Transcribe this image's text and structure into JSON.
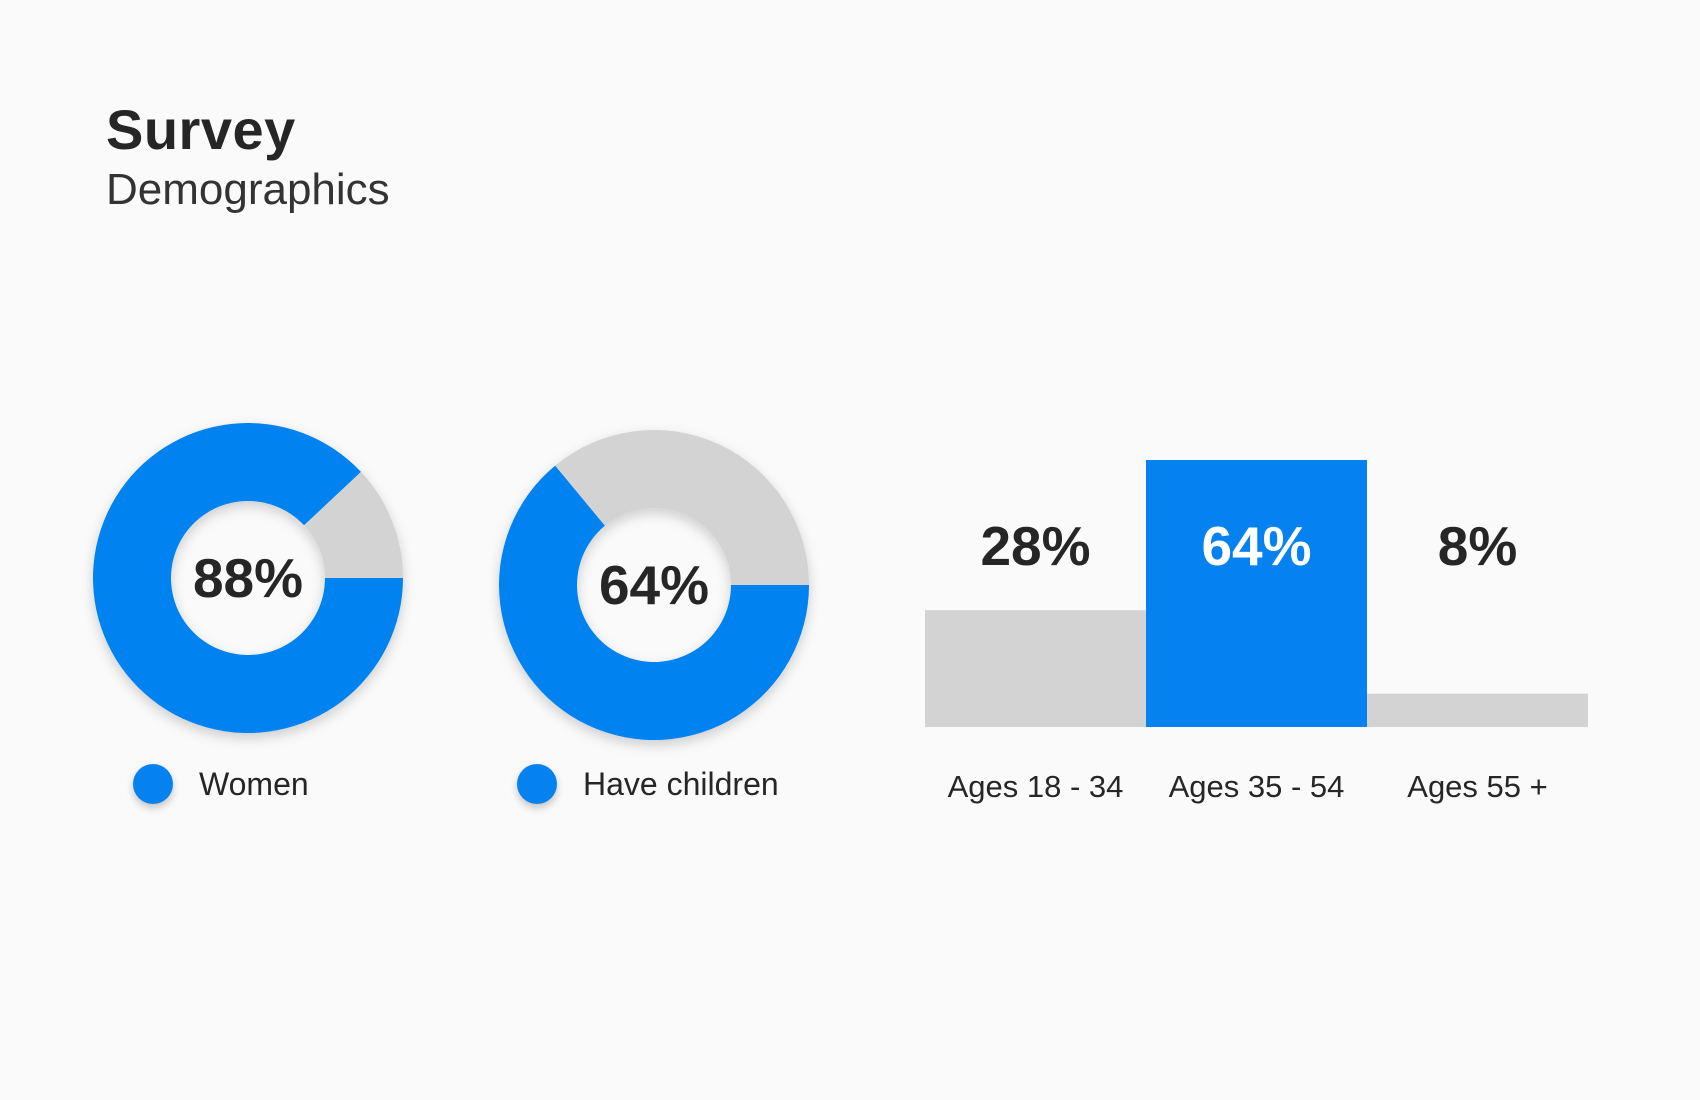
{
  "header": {
    "title": "Survey",
    "subtitle": "Demographics"
  },
  "colors": {
    "accent": "#0682f0",
    "track": "#d3d3d3",
    "text": "#262626",
    "background": "#fafafa"
  },
  "donuts": [
    {
      "value_label": "88%",
      "legend_label": "Women"
    },
    {
      "value_label": "64%",
      "legend_label": "Have children"
    }
  ],
  "bars": {
    "value_labels": [
      "28%",
      "64%",
      "8%"
    ],
    "category_labels": [
      "Ages 18 - 34",
      "Ages 35 - 54",
      "Ages 55 +"
    ]
  },
  "chart_data": [
    {
      "type": "pie",
      "categories": [
        "Women",
        ""
      ],
      "values": [
        88,
        12
      ],
      "highlight_index": 0
    },
    {
      "type": "pie",
      "categories": [
        "Have children",
        ""
      ],
      "values": [
        64,
        36
      ],
      "highlight_index": 0
    },
    {
      "type": "bar",
      "categories": [
        "Ages 18 - 34",
        "Ages 35 - 54",
        "Ages 55 +"
      ],
      "values": [
        28,
        64,
        8
      ],
      "highlight_index": 1,
      "ylim": [
        0,
        64
      ],
      "grid": false
    }
  ]
}
